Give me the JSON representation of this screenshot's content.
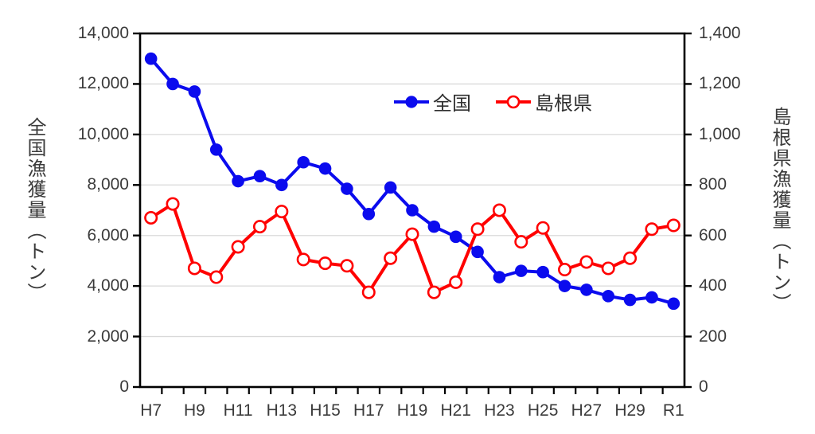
{
  "chart_data": {
    "type": "line",
    "title": "",
    "categories": [
      "H7",
      "H8",
      "H9",
      "H10",
      "H11",
      "H12",
      "H13",
      "H14",
      "H15",
      "H16",
      "H17",
      "H18",
      "H19",
      "H20",
      "H21",
      "H22",
      "H23",
      "H24",
      "H25",
      "H26",
      "H27",
      "H28",
      "H29",
      "H30",
      "R1"
    ],
    "x_tick_labels": [
      "H7",
      "H9",
      "H11",
      "H13",
      "H15",
      "H17",
      "H19",
      "H21",
      "H23",
      "H25",
      "H27",
      "H29",
      "R1"
    ],
    "x_tick_indices": [
      0,
      2,
      4,
      6,
      8,
      10,
      12,
      14,
      16,
      18,
      20,
      22,
      24
    ],
    "series": [
      {
        "name": "全国",
        "axis": "left",
        "color": "#0b0bee",
        "marker": "filled-circle",
        "values": [
          13000,
          12000,
          11700,
          9400,
          8150,
          8350,
          8000,
          8900,
          8650,
          7850,
          6850,
          7900,
          7000,
          6350,
          5950,
          5350,
          4350,
          4600,
          4550,
          4000,
          3850,
          3600,
          3450,
          3550,
          3300
        ]
      },
      {
        "name": "島根県",
        "axis": "right",
        "color": "#ff0000",
        "marker": "open-circle",
        "values": [
          670,
          725,
          470,
          435,
          555,
          635,
          695,
          505,
          490,
          480,
          375,
          510,
          605,
          375,
          415,
          625,
          700,
          575,
          630,
          465,
          495,
          470,
          510,
          625,
          640
        ]
      }
    ],
    "left_axis": {
      "title": "全国漁獲量（トン）",
      "min": 0,
      "max": 14000,
      "step": 2000,
      "tick_labels": [
        "0",
        "2,000",
        "4,000",
        "6,000",
        "8,000",
        "10,000",
        "12,000",
        "14,000"
      ]
    },
    "right_axis": {
      "title": "島根県漁獲量（トン）",
      "min": 0,
      "max": 1400,
      "step": 200,
      "tick_labels": [
        "0",
        "200",
        "400",
        "600",
        "800",
        "1,000",
        "1,200",
        "1,400"
      ]
    },
    "grid": true,
    "legend_position": "inside-top-center",
    "layout_hints": {
      "grid_color": "#d9d9d9",
      "axis_color": "#000000",
      "text_color": "#3b3b3b",
      "plot_border": "full"
    }
  }
}
